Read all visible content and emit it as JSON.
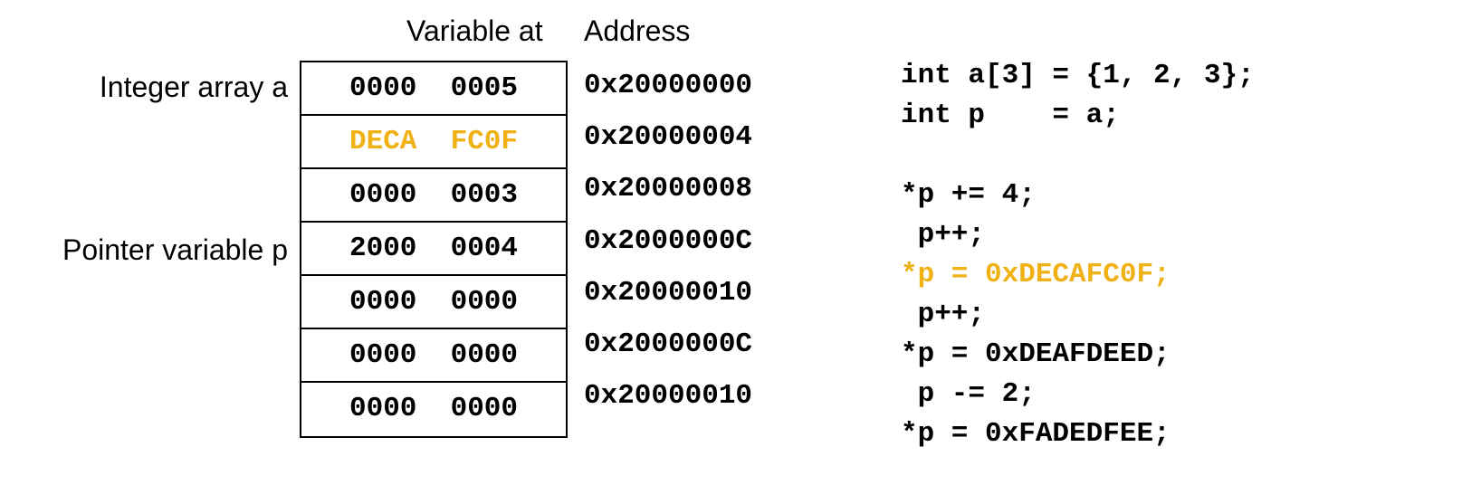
{
  "headers": {
    "variable_at": "Variable at",
    "address": "Address"
  },
  "row_labels": {
    "integer_array": "Integer array a",
    "pointer_variable": "Pointer variable p"
  },
  "memory": [
    {
      "value": "0000  0005",
      "address": "0x20000000",
      "highlight": false
    },
    {
      "value": "DECA  FC0F",
      "address": "0x20000004",
      "highlight": true
    },
    {
      "value": "0000  0003",
      "address": "0x20000008",
      "highlight": false
    },
    {
      "value": "2000  0004",
      "address": "0x2000000C",
      "highlight": false
    },
    {
      "value": "0000  0000",
      "address": "0x20000010",
      "highlight": false
    },
    {
      "value": "0000  0000",
      "address": "0x2000000C",
      "highlight": false
    },
    {
      "value": "0000  0000",
      "address": "0x20000010",
      "highlight": false
    }
  ],
  "code_lines": [
    {
      "text": "int a[3] = {1, 2, 3};",
      "highlight": false
    },
    {
      "text": "int p    = a;",
      "highlight": false
    },
    {
      "text": "*p += 4;",
      "highlight": false
    },
    {
      "text": " p++;",
      "highlight": false
    },
    {
      "text": "*p = 0xDECAFC0F;",
      "highlight": true
    },
    {
      "text": " p++;",
      "highlight": false
    },
    {
      "text": "*p = 0xDEAFDEED;",
      "highlight": false
    },
    {
      "text": " p -= 2;",
      "highlight": false
    },
    {
      "text": "*p = 0xFADEDFEE;",
      "highlight": false
    }
  ],
  "colors": {
    "highlight": "#f0b114",
    "text": "#000000",
    "border": "#000000"
  }
}
